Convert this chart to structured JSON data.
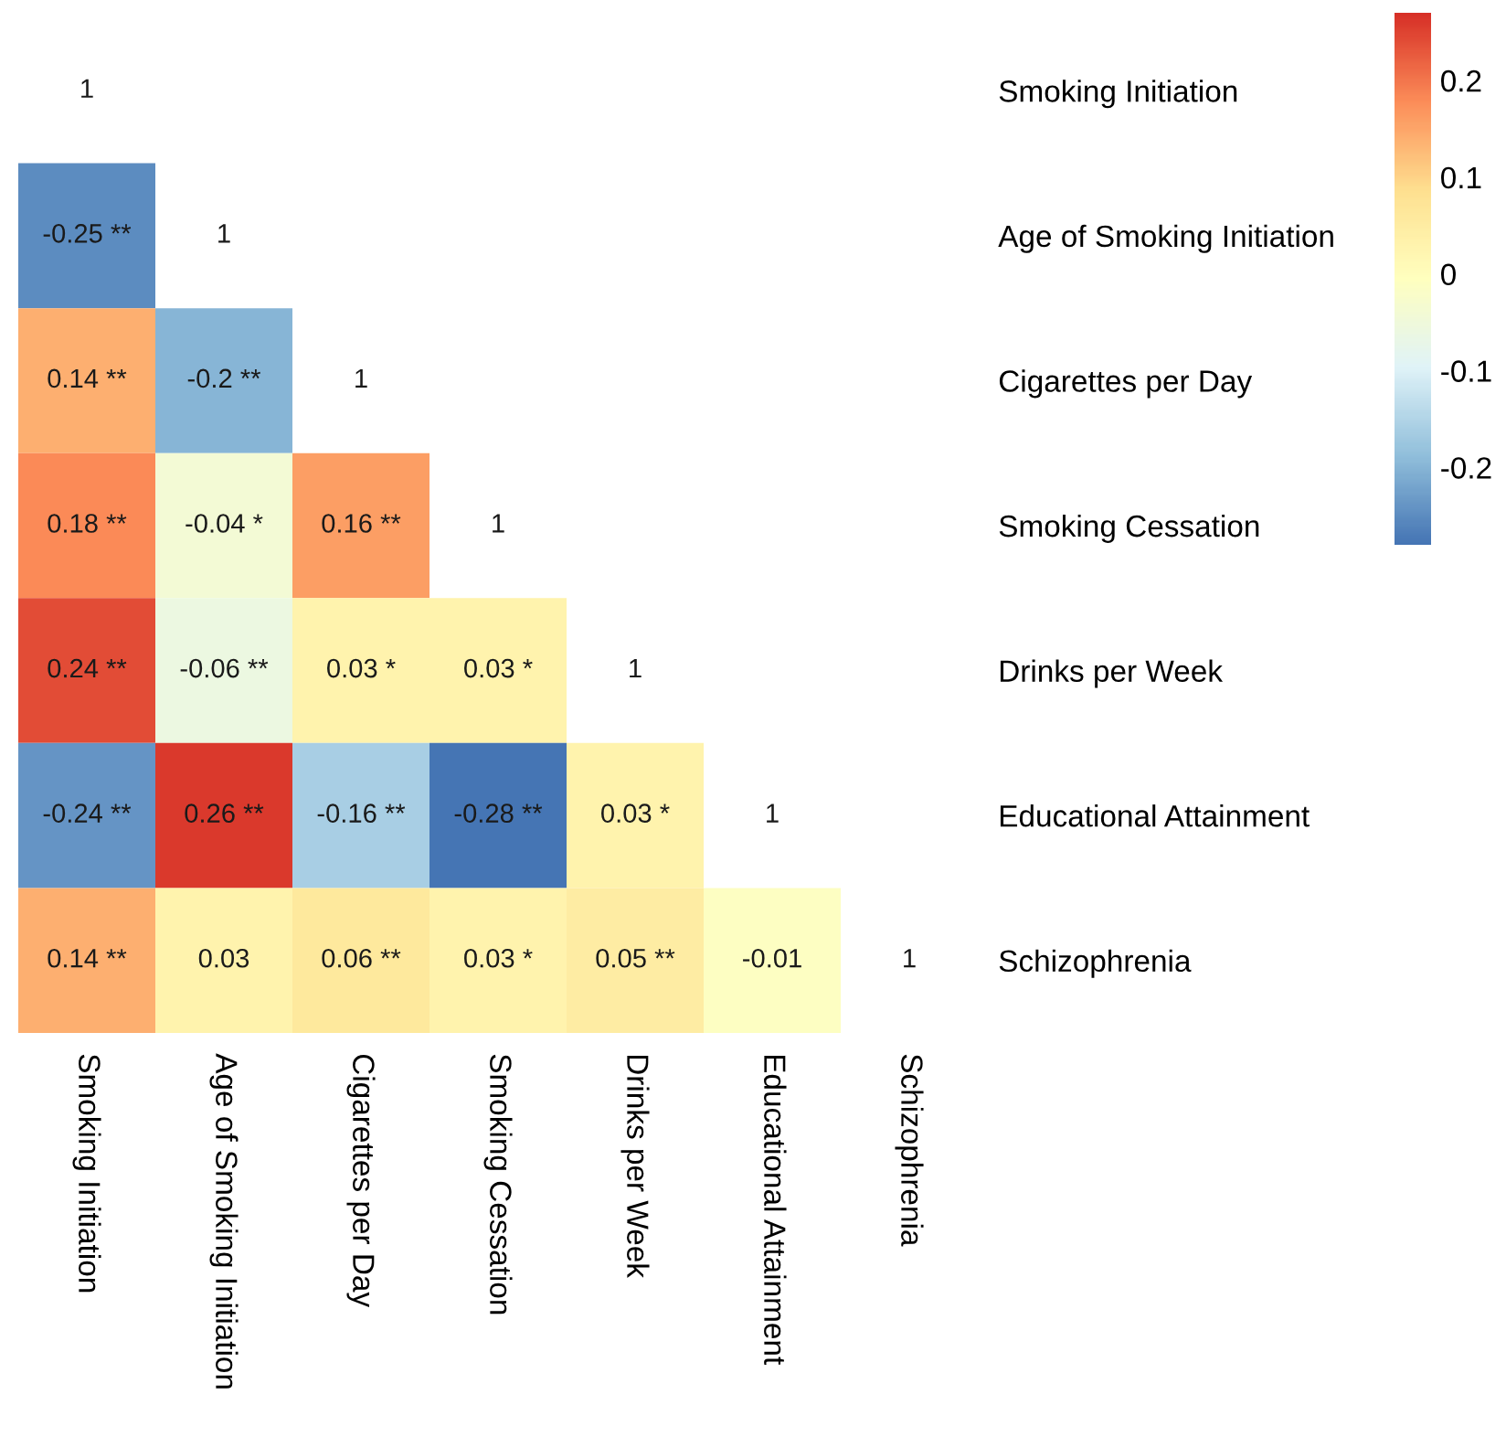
{
  "chart_data": {
    "type": "heatmap",
    "categories": [
      "Smoking Initiation",
      "Age of Smoking Initiation",
      "Cigarettes per Day",
      "Smoking Cessation",
      "Drinks per Week",
      "Educational Attainment",
      "Schizophrenia"
    ],
    "y_categories": [
      "Smoking Initiation",
      "Age of Smoking Initiation",
      "Cigarettes per Day",
      "Smoking Cessation",
      "Drinks per Week",
      "Educational Attainment",
      "Schizophrenia"
    ],
    "cells": [
      [
        null,
        null,
        null,
        null,
        null,
        null,
        null
      ],
      [
        -0.25,
        null,
        null,
        null,
        null,
        null,
        null
      ],
      [
        0.14,
        -0.2,
        null,
        null,
        null,
        null,
        null
      ],
      [
        0.18,
        -0.04,
        0.16,
        null,
        null,
        null,
        null
      ],
      [
        0.24,
        -0.06,
        0.03,
        0.03,
        null,
        null,
        null
      ],
      [
        -0.24,
        0.26,
        -0.16,
        -0.28,
        0.03,
        null,
        null
      ],
      [
        0.14,
        0.03,
        0.06,
        0.03,
        0.05,
        -0.01,
        null
      ]
    ],
    "cell_labels": [
      [
        "1",
        null,
        null,
        null,
        null,
        null,
        null
      ],
      [
        "-0.25 **",
        "1",
        null,
        null,
        null,
        null,
        null
      ],
      [
        "0.14 **",
        "-0.2 **",
        "1",
        null,
        null,
        null,
        null
      ],
      [
        "0.18 **",
        "-0.04 *",
        "0.16 **",
        "1",
        null,
        null,
        null
      ],
      [
        "0.24 **",
        "-0.06 **",
        "0.03 *",
        "0.03 *",
        "1",
        null,
        null
      ],
      [
        "-0.24 **",
        "0.26 **",
        "-0.16 **",
        "-0.28 **",
        "0.03 *",
        "1",
        null
      ],
      [
        "0.14 **",
        "0.03",
        "0.06 **",
        "0.03 *",
        "0.05 **",
        "-0.01",
        "1"
      ]
    ],
    "clim": [
      -0.28,
      0.27
    ],
    "cticks": [
      0.2,
      0.1,
      0,
      -0.1,
      -0.2
    ]
  }
}
